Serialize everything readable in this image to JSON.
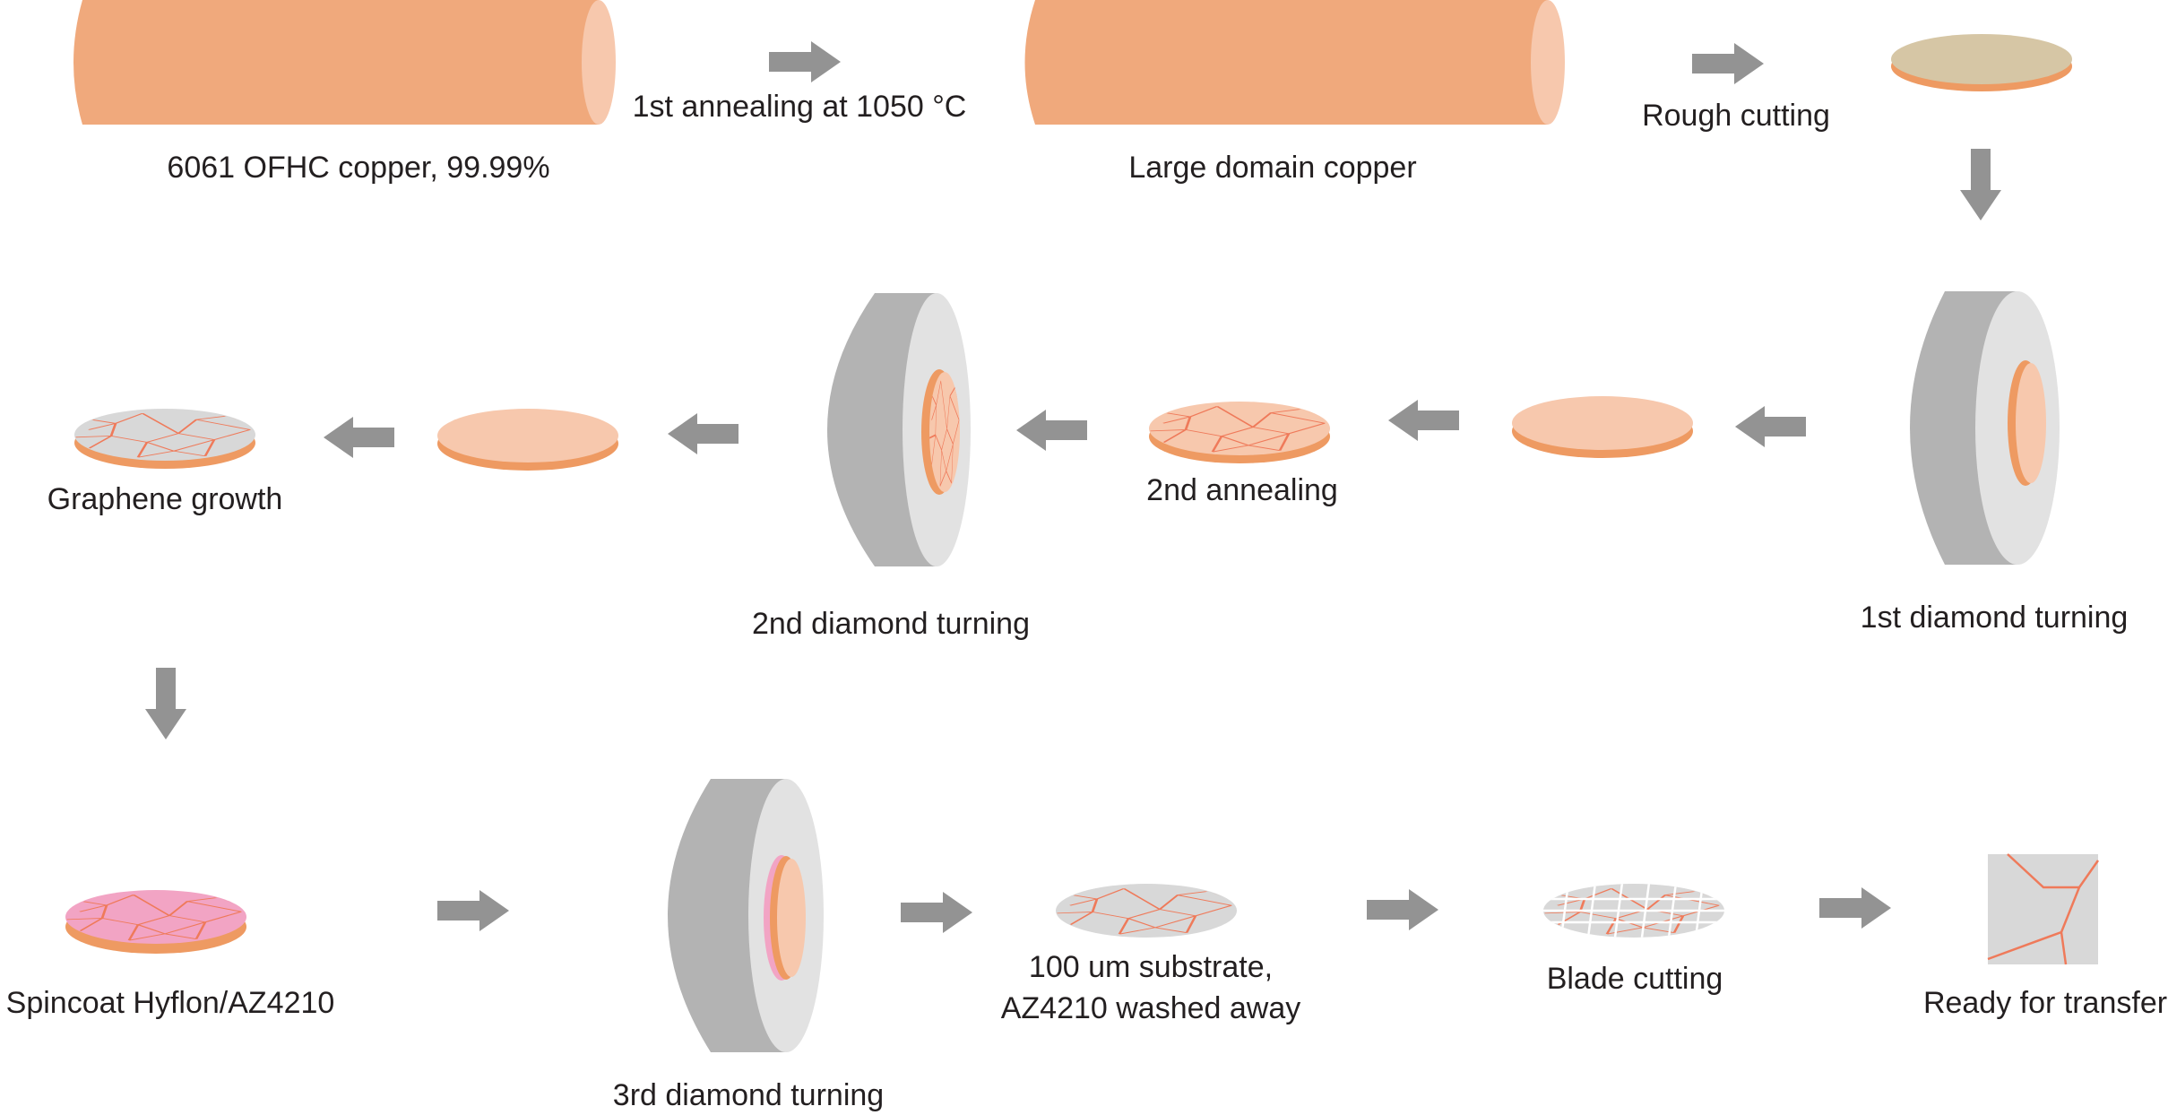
{
  "labels": {
    "copper_rod": "6061 OFHC copper, 99.99%",
    "first_annealing": "1st annealing at 1050 °C",
    "large_domain": "Large domain copper",
    "rough_cutting": "Rough cutting",
    "first_diamond": "1st diamond turning",
    "second_annealing": "2nd annealing",
    "second_diamond": "2nd diamond turning",
    "graphene_growth": "Graphene growth",
    "spincoat": "Spincoat Hyflon/AZ4210",
    "third_diamond": "3rd diamond turning",
    "substrate_line1": "100 um substrate,",
    "substrate_line2": "AZ4210 washed away",
    "blade_cutting": "Blade cutting",
    "ready": "Ready for transfer"
  },
  "colors": {
    "copper": "#f0a97c",
    "copper_light": "#f7c8ad",
    "copper_edge": "#ee9a62",
    "rough_disc_top": "#d6c6a5",
    "grain_line": "#ef7a5a",
    "graphene_gray": "#d8d8d8",
    "resist_pink": "#f2a4c4",
    "chuck_dark": "#b3b3b3",
    "chuck_light": "#e2e2e2",
    "arrow": "#939393",
    "text": "#231f20"
  }
}
